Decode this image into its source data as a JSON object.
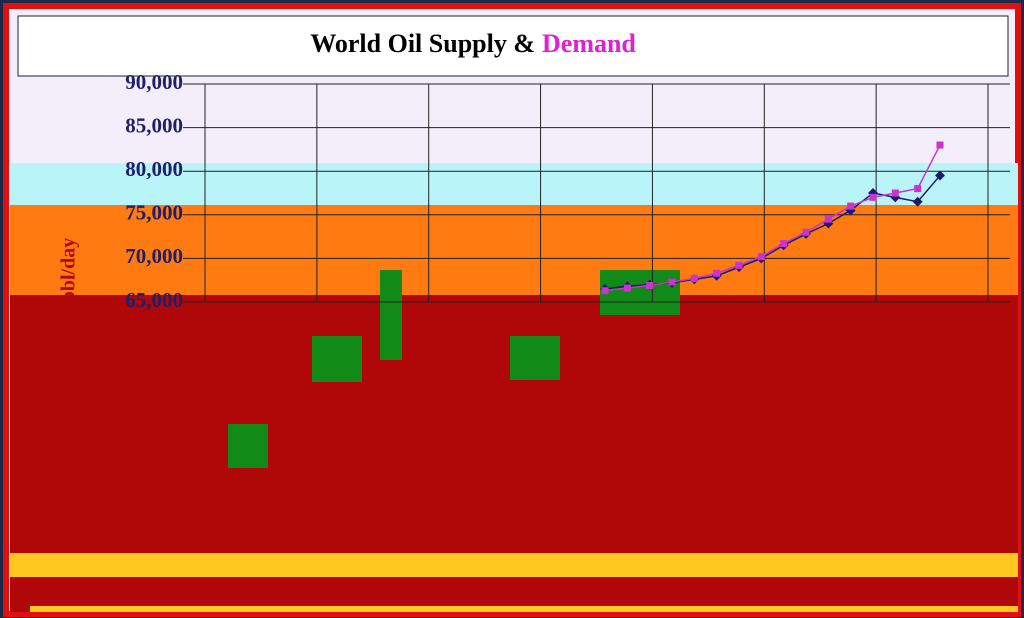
{
  "chart_data": {
    "type": "line",
    "title": "World Oil Supply &",
    "title_highlight": "Demand",
    "y_label": "bbl/day",
    "categories": [
      null,
      null,
      null,
      null,
      null,
      null,
      null,
      null,
      null,
      null,
      null,
      null,
      null,
      null,
      null,
      null
    ],
    "series": [
      {
        "name": "Supply",
        "color": "#1a1a6e",
        "values": [
          66500,
          66800,
          67000,
          67200,
          67600,
          68000,
          69000,
          70000,
          71500,
          72800,
          74000,
          75500,
          77500,
          77000,
          76500,
          79500
        ]
      },
      {
        "name": "Demand",
        "color": "#cc33cc",
        "values": [
          66300,
          66600,
          66900,
          67300,
          67700,
          68300,
          69200,
          70200,
          71700,
          73000,
          74500,
          76000,
          77000,
          77500,
          78000,
          83000
        ]
      }
    ],
    "ylim": [
      65000,
      90000
    ],
    "yticks": [
      {
        "value": 65000,
        "label": "65,000"
      },
      {
        "value": 70000,
        "label": "70,000"
      },
      {
        "value": 75000,
        "label": "75,000"
      },
      {
        "value": 80000,
        "label": "80,000"
      },
      {
        "value": 85000,
        "label": "85,000"
      },
      {
        "value": 90000,
        "label": "90,000"
      }
    ],
    "grid": true
  }
}
